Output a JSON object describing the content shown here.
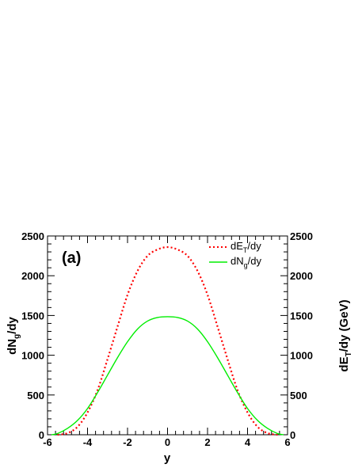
{
  "chart_data": {
    "type": "line",
    "panel_label": "(a)",
    "xlabel": "y",
    "ylabel": "dN_g/dy",
    "y2label": "dE_T/dy (GeV)",
    "xlim": [
      -6,
      6
    ],
    "ylim": [
      0,
      2500
    ],
    "y2lim": [
      0,
      2500
    ],
    "x_ticks": [
      -6,
      -4,
      -2,
      0,
      2,
      4,
      6
    ],
    "y_ticks": [
      0,
      500,
      1000,
      1500,
      2000,
      2500
    ],
    "legend_position": "top-right",
    "series": [
      {
        "name": "dE_T/dy",
        "axis": "right",
        "color": "#ff0000",
        "style": "dotted",
        "x": [
          -5.5,
          -5.0,
          -4.5,
          -4.0,
          -3.5,
          -3.0,
          -2.5,
          -2.0,
          -1.5,
          -1.0,
          -0.5,
          0.0,
          0.5,
          1.0,
          1.5,
          2.0,
          2.5,
          3.0,
          3.5,
          4.0,
          4.5,
          5.0,
          5.5
        ],
        "y": [
          0,
          20,
          100,
          280,
          560,
          950,
          1360,
          1760,
          2060,
          2250,
          2330,
          2360,
          2330,
          2250,
          2060,
          1760,
          1360,
          950,
          560,
          280,
          100,
          20,
          0
        ]
      },
      {
        "name": "dN_g/dy",
        "axis": "left",
        "color": "#00ee00",
        "style": "solid",
        "x": [
          -5.8,
          -5.5,
          -5.0,
          -4.5,
          -4.0,
          -3.5,
          -3.0,
          -2.5,
          -2.0,
          -1.5,
          -1.0,
          -0.5,
          0.0,
          0.5,
          1.0,
          1.5,
          2.0,
          2.5,
          3.0,
          3.5,
          4.0,
          4.5,
          5.0,
          5.5,
          5.8
        ],
        "y": [
          0,
          15,
          80,
          180,
          330,
          530,
          750,
          970,
          1170,
          1330,
          1430,
          1475,
          1485,
          1475,
          1430,
          1330,
          1170,
          970,
          750,
          530,
          330,
          180,
          80,
          15,
          0
        ]
      }
    ]
  }
}
